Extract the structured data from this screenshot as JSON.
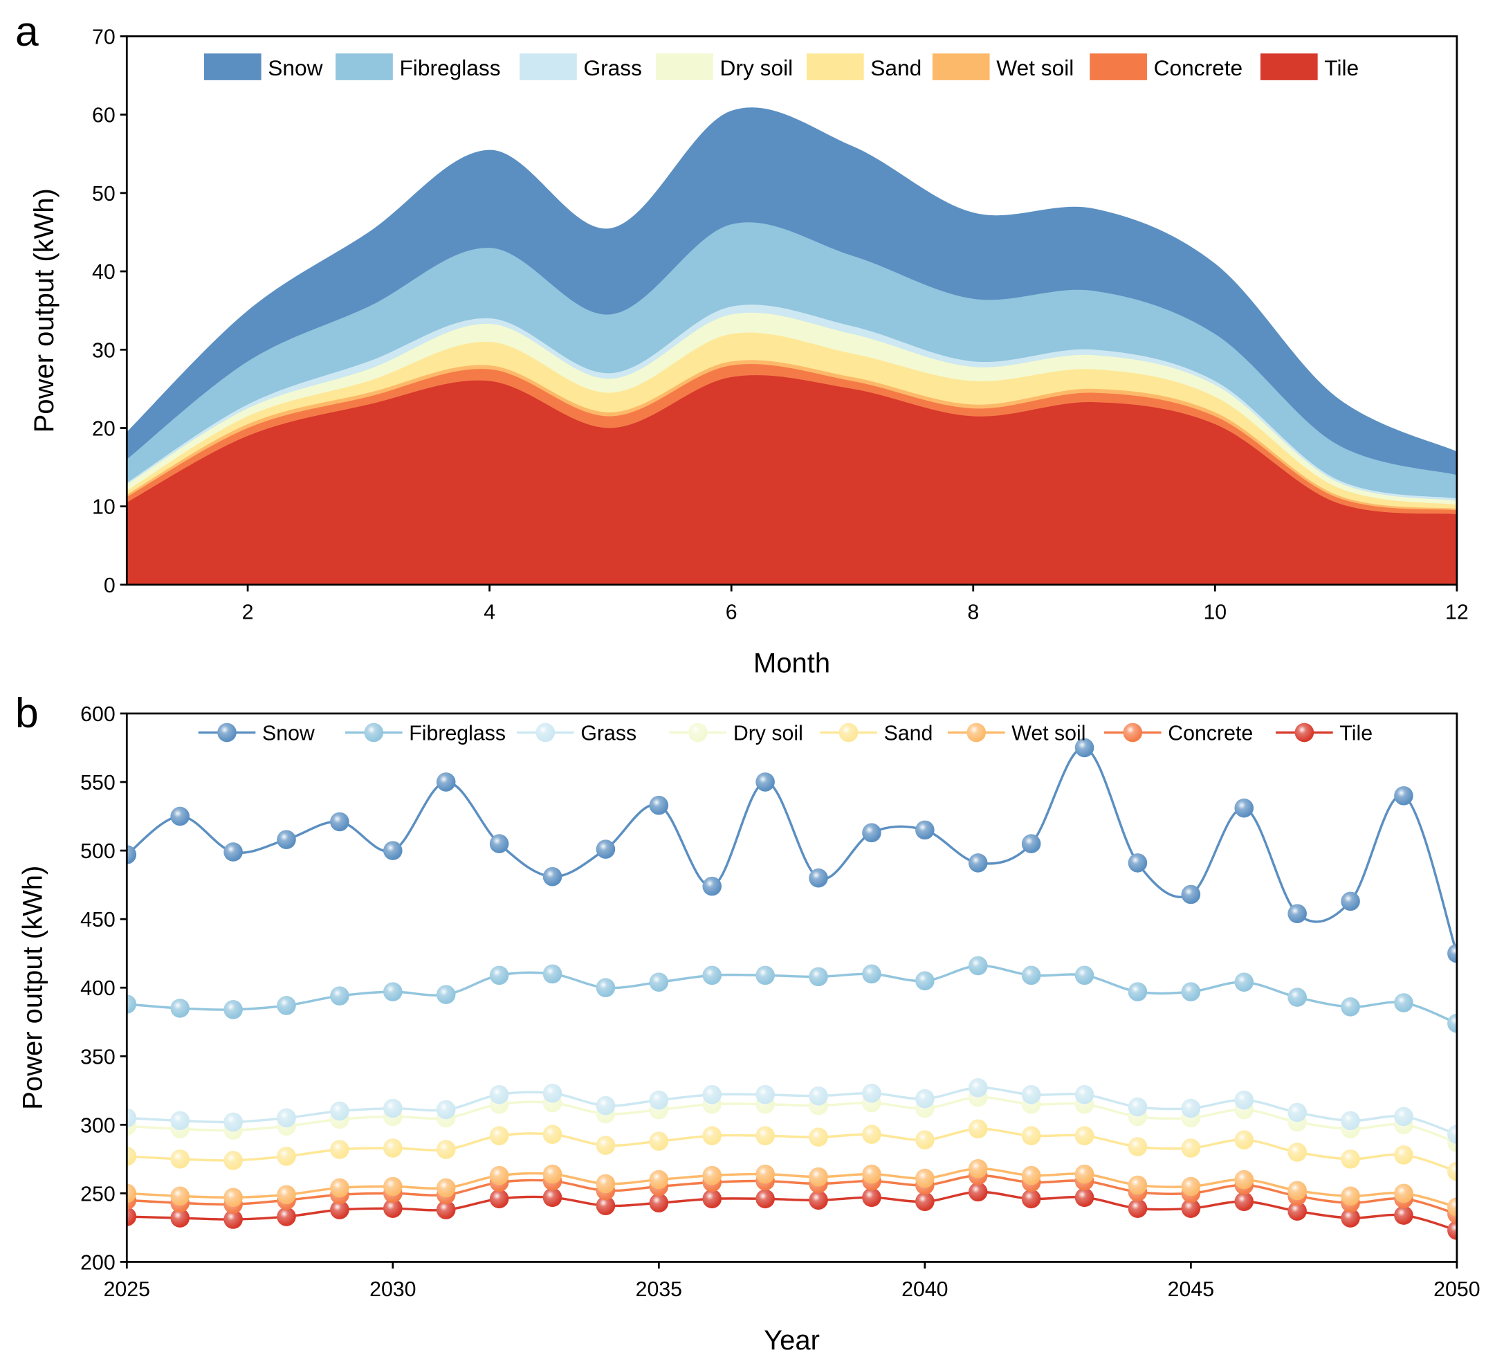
{
  "colors": {
    "Snow": "#5b8fc1",
    "Fibreglass": "#92c5de",
    "Grass": "#cde8f2",
    "Dry soil": "#f3f9d2",
    "Sand": "#fee797",
    "Wet soil": "#fdb96a",
    "Concrete": "#f47b48",
    "Tile": "#d7392b"
  },
  "chart_data": [
    {
      "panel_label": "a",
      "type": "area",
      "stacked": true,
      "xlabel": "Month",
      "ylabel": "Power output (kWh)",
      "xlim": [
        1,
        12
      ],
      "ylim": [
        0,
        70
      ],
      "xticks": [
        2,
        4,
        6,
        8,
        10,
        12
      ],
      "yticks": [
        0,
        10,
        20,
        30,
        40,
        50,
        60,
        70
      ],
      "legend": "top",
      "x": [
        1,
        2,
        3,
        4,
        5,
        6,
        7,
        8,
        9,
        10,
        11,
        12
      ],
      "series": [
        {
          "name": "Tile",
          "values": [
            10.5,
            19,
            23,
            26,
            20,
            26.5,
            25,
            21.5,
            23.3,
            20.5,
            10.5,
            9
          ]
        },
        {
          "name": "Concrete",
          "values": [
            0.7,
            1,
            1,
            1.5,
            1.5,
            1.5,
            1,
            1,
            1.2,
            1,
            0.7,
            0.5
          ]
        },
        {
          "name": "Wet soil",
          "values": [
            0.3,
            0.5,
            0.5,
            0.5,
            0.5,
            0.5,
            0.5,
            0.5,
            0.5,
            0.5,
            0.3,
            0.2
          ]
        },
        {
          "name": "Sand",
          "values": [
            0.5,
            1,
            1.5,
            3,
            2.5,
            3.5,
            3,
            3,
            2.5,
            2,
            1,
            0.5
          ]
        },
        {
          "name": "Dry soil",
          "values": [
            0.8,
            1,
            1.5,
            2.3,
            1.8,
            2.5,
            2.5,
            1.8,
            1.8,
            1.5,
            0.7,
            0.5
          ]
        },
        {
          "name": "Grass",
          "values": [
            0.2,
            0.5,
            1,
            0.7,
            0.7,
            1,
            1,
            0.7,
            0.7,
            0.5,
            0.3,
            0.3
          ]
        },
        {
          "name": "Fibreglass",
          "values": [
            3,
            5.5,
            7,
            9,
            7.5,
            10.5,
            9,
            8,
            7.5,
            6,
            4.5,
            3
          ]
        },
        {
          "name": "Snow",
          "values": [
            3.5,
            6.5,
            9.5,
            12.5,
            11,
            14.5,
            14,
            11,
            10.5,
            9,
            6,
            3
          ]
        }
      ],
      "legend_order": [
        "Snow",
        "Fibreglass",
        "Grass",
        "Dry soil",
        "Sand",
        "Wet soil",
        "Concrete",
        "Tile"
      ]
    },
    {
      "panel_label": "b",
      "type": "line",
      "xlabel": "Year",
      "ylabel": "Power output (kWh)",
      "xlim": [
        2025,
        2050
      ],
      "ylim": [
        200,
        600
      ],
      "xticks": [
        2025,
        2030,
        2035,
        2040,
        2045,
        2050
      ],
      "yticks": [
        200,
        250,
        300,
        350,
        400,
        450,
        500,
        550,
        600
      ],
      "legend": "top",
      "x": [
        2025,
        2026,
        2027,
        2028,
        2029,
        2030,
        2031,
        2032,
        2033,
        2034,
        2035,
        2036,
        2037,
        2038,
        2039,
        2040,
        2041,
        2042,
        2043,
        2044,
        2045,
        2046,
        2047,
        2048,
        2049,
        2050
      ],
      "series": [
        {
          "name": "Snow",
          "values": [
            497,
            525,
            499,
            508,
            521,
            500,
            550,
            505,
            481,
            501,
            533,
            474,
            550,
            480,
            513,
            515,
            491,
            505,
            575,
            491,
            468,
            531,
            454,
            463,
            540,
            425
          ]
        },
        {
          "name": "Fibreglass",
          "values": [
            388,
            385,
            384,
            387,
            394,
            397,
            395,
            409,
            410,
            400,
            404,
            409,
            409,
            408,
            410,
            405,
            416,
            409,
            409,
            397,
            397,
            404,
            393,
            386,
            389,
            374
          ]
        },
        {
          "name": "Grass",
          "values": [
            305,
            303,
            302,
            305,
            310,
            312,
            311,
            322,
            323,
            314,
            318,
            322,
            322,
            321,
            323,
            319,
            327,
            322,
            322,
            313,
            312,
            318,
            309,
            303,
            306,
            293
          ]
        },
        {
          "name": "Dry soil",
          "values": [
            299,
            297,
            296,
            299,
            304,
            306,
            305,
            315,
            316,
            308,
            311,
            315,
            315,
            314,
            316,
            312,
            320,
            315,
            315,
            306,
            305,
            311,
            302,
            297,
            300,
            287
          ]
        },
        {
          "name": "Sand",
          "values": [
            277,
            275,
            274,
            277,
            282,
            283,
            282,
            292,
            293,
            285,
            288,
            292,
            292,
            291,
            293,
            289,
            297,
            292,
            292,
            284,
            283,
            289,
            280,
            275,
            278,
            266
          ]
        },
        {
          "name": "Wet soil",
          "values": [
            250,
            248,
            247,
            249,
            254,
            255,
            254,
            263,
            264,
            257,
            260,
            263,
            264,
            262,
            264,
            261,
            268,
            263,
            264,
            256,
            255,
            260,
            252,
            248,
            250,
            240
          ]
        },
        {
          "name": "Concrete",
          "values": [
            245,
            243,
            242,
            245,
            249,
            250,
            249,
            258,
            259,
            252,
            255,
            258,
            259,
            257,
            259,
            256,
            263,
            258,
            259,
            251,
            250,
            256,
            248,
            243,
            246,
            235
          ]
        },
        {
          "name": "Tile",
          "values": [
            233,
            232,
            231,
            233,
            238,
            239,
            238,
            246,
            247,
            241,
            243,
            246,
            246,
            245,
            247,
            244,
            251,
            246,
            247,
            239,
            239,
            244,
            237,
            232,
            234,
            223
          ]
        }
      ]
    }
  ]
}
